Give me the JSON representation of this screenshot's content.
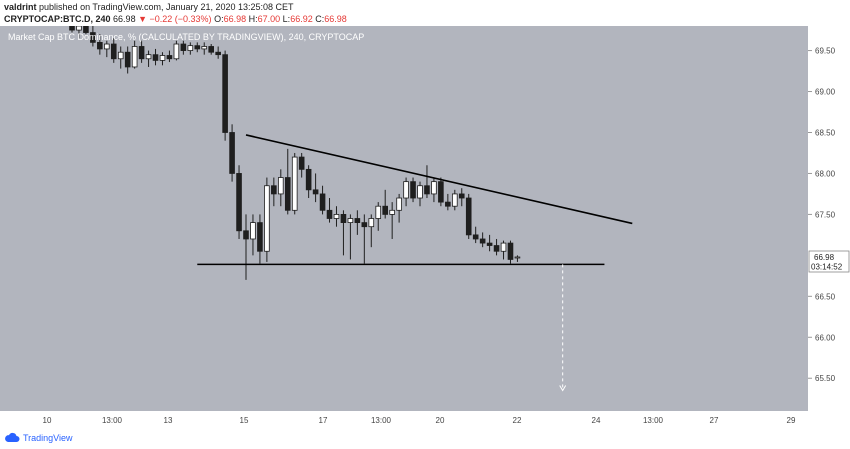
{
  "header": {
    "author": "valdrint",
    "published_text": "published on TradingView.com, January 21, 2020 13:25:08 CET",
    "symbol": "CRYPTOCAP:BTC.D, 240",
    "last": "66.98",
    "change": "▼ −0.22 (−0.33%)",
    "ohlc": [
      {
        "label": "O:",
        "value": "66.98"
      },
      {
        "label": "H:",
        "value": "67.00"
      },
      {
        "label": "L:",
        "value": "66.92"
      },
      {
        "label": "C:",
        "value": "66.98"
      }
    ]
  },
  "overlay_title": "Market Cap BTC Dominance, % (CALCULATED BY TRADINGVIEW), 240, CRYPTOCAP",
  "footer": {
    "brand": "TradingView"
  },
  "colors": {
    "background": "#b2b5be",
    "candle_body": "#1f1f1f",
    "candle_up": "#ffffff",
    "line": "#000000",
    "target": "#ffffff",
    "brand": "#2962ff",
    "badge_bg": "#ffffff"
  },
  "price_badge": {
    "value": "66.98",
    "countdown": "03:14:52"
  },
  "chart_data": {
    "type": "candlestick",
    "ylim": [
      65.1,
      69.8
    ],
    "y_ticks": [
      "69.50",
      "69.00",
      "68.50",
      "68.00",
      "67.50",
      "66.50",
      "66.00",
      "65.50"
    ],
    "x_ticks": [
      "10",
      "13:00",
      "13",
      "15",
      "17",
      "13:00",
      "20",
      "22",
      "24",
      "13:00",
      "27",
      "29"
    ],
    "candles": [
      {
        "o": 69.88,
        "h": 69.95,
        "l": 69.72,
        "c": 69.75
      },
      {
        "o": 69.75,
        "h": 69.85,
        "l": 69.65,
        "c": 69.8
      },
      {
        "o": 69.8,
        "h": 69.9,
        "l": 69.7,
        "c": 69.72
      },
      {
        "o": 69.72,
        "h": 69.82,
        "l": 69.55,
        "c": 69.6
      },
      {
        "o": 69.6,
        "h": 69.7,
        "l": 69.45,
        "c": 69.52
      },
      {
        "o": 69.52,
        "h": 69.62,
        "l": 69.42,
        "c": 69.58
      },
      {
        "o": 69.58,
        "h": 69.65,
        "l": 69.35,
        "c": 69.4
      },
      {
        "o": 69.4,
        "h": 69.55,
        "l": 69.28,
        "c": 69.48
      },
      {
        "o": 69.48,
        "h": 69.55,
        "l": 69.22,
        "c": 69.3
      },
      {
        "o": 69.3,
        "h": 69.62,
        "l": 69.28,
        "c": 69.55
      },
      {
        "o": 69.55,
        "h": 69.62,
        "l": 69.35,
        "c": 69.4
      },
      {
        "o": 69.4,
        "h": 69.5,
        "l": 69.3,
        "c": 69.45
      },
      {
        "o": 69.45,
        "h": 69.52,
        "l": 69.32,
        "c": 69.38
      },
      {
        "o": 69.38,
        "h": 69.48,
        "l": 69.32,
        "c": 69.44
      },
      {
        "o": 69.44,
        "h": 69.5,
        "l": 69.36,
        "c": 69.4
      },
      {
        "o": 69.4,
        "h": 69.62,
        "l": 69.38,
        "c": 69.58
      },
      {
        "o": 69.58,
        "h": 69.62,
        "l": 69.45,
        "c": 69.5
      },
      {
        "o": 69.5,
        "h": 69.6,
        "l": 69.45,
        "c": 69.56
      },
      {
        "o": 69.56,
        "h": 69.6,
        "l": 69.48,
        "c": 69.52
      },
      {
        "o": 69.52,
        "h": 69.6,
        "l": 69.45,
        "c": 69.55
      },
      {
        "o": 69.55,
        "h": 69.58,
        "l": 69.45,
        "c": 69.48
      },
      {
        "o": 69.48,
        "h": 69.55,
        "l": 69.4,
        "c": 69.45
      },
      {
        "o": 69.45,
        "h": 69.5,
        "l": 68.4,
        "c": 68.5
      },
      {
        "o": 68.5,
        "h": 68.6,
        "l": 67.9,
        "c": 68.0
      },
      {
        "o": 68.0,
        "h": 68.1,
        "l": 67.2,
        "c": 67.3
      },
      {
        "o": 67.3,
        "h": 67.5,
        "l": 66.7,
        "c": 67.2
      },
      {
        "o": 67.2,
        "h": 67.5,
        "l": 67.0,
        "c": 67.4
      },
      {
        "o": 67.4,
        "h": 67.5,
        "l": 66.9,
        "c": 67.05
      },
      {
        "o": 67.05,
        "h": 67.95,
        "l": 66.92,
        "c": 67.85
      },
      {
        "o": 67.85,
        "h": 67.95,
        "l": 67.6,
        "c": 67.75
      },
      {
        "o": 67.75,
        "h": 68.05,
        "l": 67.6,
        "c": 67.95
      },
      {
        "o": 67.95,
        "h": 68.3,
        "l": 67.5,
        "c": 67.55
      },
      {
        "o": 67.55,
        "h": 68.25,
        "l": 67.5,
        "c": 68.2
      },
      {
        "o": 68.2,
        "h": 68.25,
        "l": 67.95,
        "c": 68.05
      },
      {
        "o": 68.05,
        "h": 68.1,
        "l": 67.7,
        "c": 67.8
      },
      {
        "o": 67.8,
        "h": 68.0,
        "l": 67.65,
        "c": 67.75
      },
      {
        "o": 67.75,
        "h": 67.85,
        "l": 67.5,
        "c": 67.55
      },
      {
        "o": 67.55,
        "h": 67.7,
        "l": 67.4,
        "c": 67.45
      },
      {
        "o": 67.45,
        "h": 67.6,
        "l": 67.35,
        "c": 67.5
      },
      {
        "o": 67.5,
        "h": 67.55,
        "l": 67.0,
        "c": 67.4
      },
      {
        "o": 67.4,
        "h": 67.5,
        "l": 66.95,
        "c": 67.45
      },
      {
        "o": 67.45,
        "h": 67.55,
        "l": 67.25,
        "c": 67.4
      },
      {
        "o": 67.4,
        "h": 67.5,
        "l": 66.9,
        "c": 67.35
      },
      {
        "o": 67.35,
        "h": 67.5,
        "l": 67.1,
        "c": 67.45
      },
      {
        "o": 67.45,
        "h": 67.65,
        "l": 67.3,
        "c": 67.6
      },
      {
        "o": 67.6,
        "h": 67.8,
        "l": 67.45,
        "c": 67.5
      },
      {
        "o": 67.5,
        "h": 67.65,
        "l": 67.2,
        "c": 67.55
      },
      {
        "o": 67.55,
        "h": 67.75,
        "l": 67.4,
        "c": 67.7
      },
      {
        "o": 67.7,
        "h": 67.95,
        "l": 67.6,
        "c": 67.9
      },
      {
        "o": 67.9,
        "h": 67.95,
        "l": 67.65,
        "c": 67.7
      },
      {
        "o": 67.7,
        "h": 67.9,
        "l": 67.6,
        "c": 67.85
      },
      {
        "o": 67.85,
        "h": 68.1,
        "l": 67.7,
        "c": 67.75
      },
      {
        "o": 67.75,
        "h": 67.95,
        "l": 67.65,
        "c": 67.9
      },
      {
        "o": 67.9,
        "h": 67.95,
        "l": 67.6,
        "c": 67.65
      },
      {
        "o": 67.65,
        "h": 67.75,
        "l": 67.55,
        "c": 67.6
      },
      {
        "o": 67.6,
        "h": 67.8,
        "l": 67.55,
        "c": 67.75
      },
      {
        "o": 67.75,
        "h": 67.82,
        "l": 67.6,
        "c": 67.7
      },
      {
        "o": 67.7,
        "h": 67.75,
        "l": 67.2,
        "c": 67.25
      },
      {
        "o": 67.25,
        "h": 67.35,
        "l": 67.15,
        "c": 67.2
      },
      {
        "o": 67.2,
        "h": 67.28,
        "l": 67.1,
        "c": 67.15
      },
      {
        "o": 67.15,
        "h": 67.25,
        "l": 67.05,
        "c": 67.12
      },
      {
        "o": 67.12,
        "h": 67.2,
        "l": 67.0,
        "c": 67.05
      },
      {
        "o": 67.05,
        "h": 67.18,
        "l": 66.95,
        "c": 67.15
      },
      {
        "o": 67.15,
        "h": 67.18,
        "l": 66.9,
        "c": 66.95
      },
      {
        "o": 66.98,
        "h": 67.0,
        "l": 66.92,
        "c": 66.98
      }
    ],
    "annotations": [
      {
        "type": "trendline",
        "from": {
          "index": 25,
          "y": 68.47
        },
        "to": {
          "index": 80.5,
          "y": 67.39
        }
      },
      {
        "type": "horizontal-line",
        "from": {
          "index": 18,
          "y": 66.89
        },
        "to": {
          "index": 76.5,
          "y": 66.89
        }
      },
      {
        "type": "target-arrow",
        "from": {
          "index": 70.5,
          "y": 66.89
        },
        "to": {
          "index": 70.5,
          "y": 65.35
        }
      }
    ]
  }
}
